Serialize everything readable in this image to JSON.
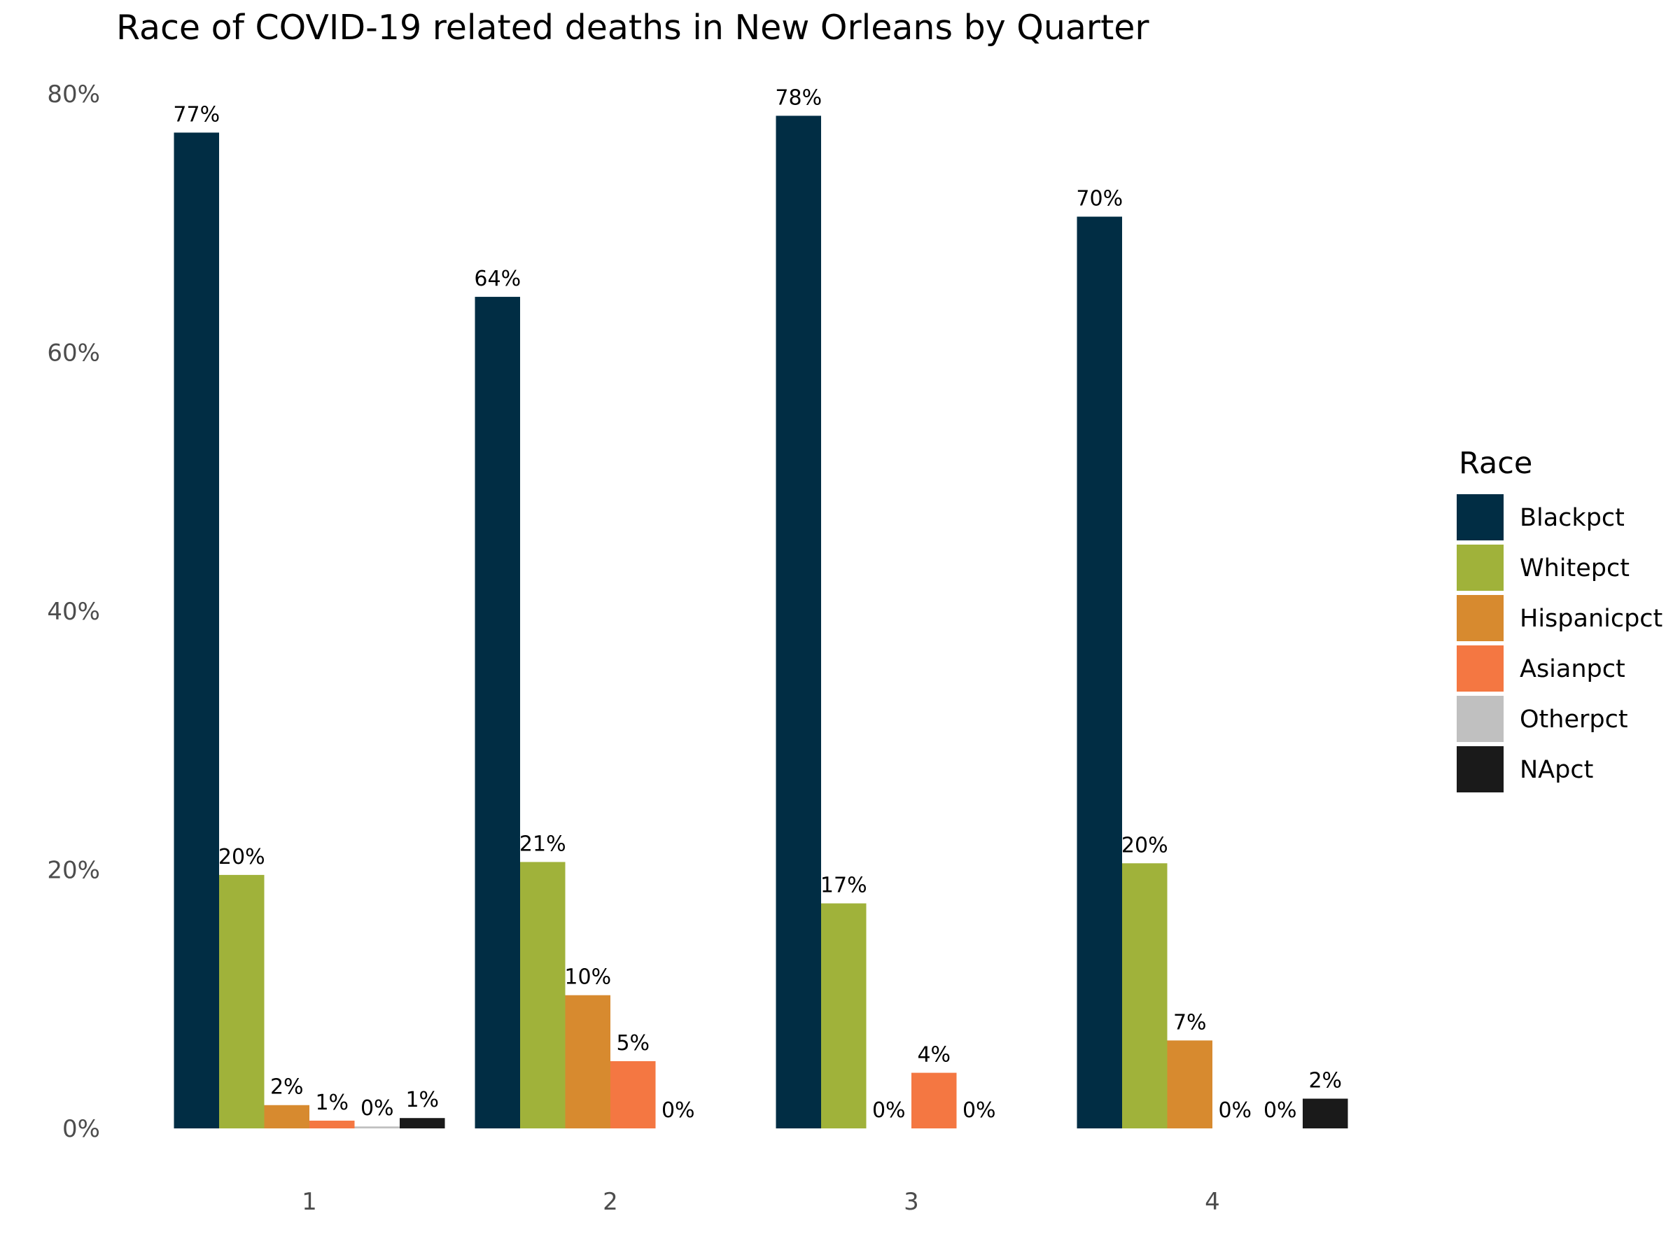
{
  "chart_data": {
    "type": "bar",
    "title": "Race of COVID-19 related deaths in New Orleans by Quarter",
    "xlabel": "",
    "ylabel": "",
    "categories": [
      "1",
      "2",
      "3",
      "4"
    ],
    "ylim": [
      0,
      80
    ],
    "y_ticks": [
      0,
      20,
      40,
      60,
      80
    ],
    "y_tick_labels": [
      "0%",
      "20%",
      "40%",
      "60%",
      "80%"
    ],
    "grid": false,
    "legend": {
      "title": "Race",
      "placement": "right"
    },
    "series": [
      {
        "name": "Blackpct",
        "color": "#012d44",
        "values": [
          77,
          64.3,
          78.3,
          70.5
        ],
        "labels": [
          "77%",
          "64%",
          "78%",
          "70%"
        ]
      },
      {
        "name": "Whitepct",
        "color": "#a0b23a",
        "values": [
          19.6,
          20.6,
          17.4,
          20.5
        ],
        "labels": [
          "20%",
          "21%",
          "17%",
          "20%"
        ]
      },
      {
        "name": "Hispanicpct",
        "color": "#d78a2f",
        "values": [
          1.8,
          10.3,
          0,
          6.8
        ],
        "labels": [
          "2%",
          "10%",
          "0%",
          "7%"
        ]
      },
      {
        "name": "Asianpct",
        "color": "#f47742",
        "values": [
          0.6,
          5.2,
          4.3,
          0
        ],
        "labels": [
          "1%",
          "5%",
          "4%",
          "0%"
        ]
      },
      {
        "name": "Otherpct",
        "color": "#c0c0c0",
        "values": [
          0.15,
          0,
          0,
          0
        ],
        "labels": [
          "0%",
          "0%",
          "0%",
          "0%"
        ]
      },
      {
        "name": "NApct",
        "color": "#1a1a1a",
        "values": [
          0.8,
          0,
          0,
          2.3
        ],
        "labels": [
          "1%",
          "",
          "",
          "2%"
        ]
      }
    ]
  }
}
